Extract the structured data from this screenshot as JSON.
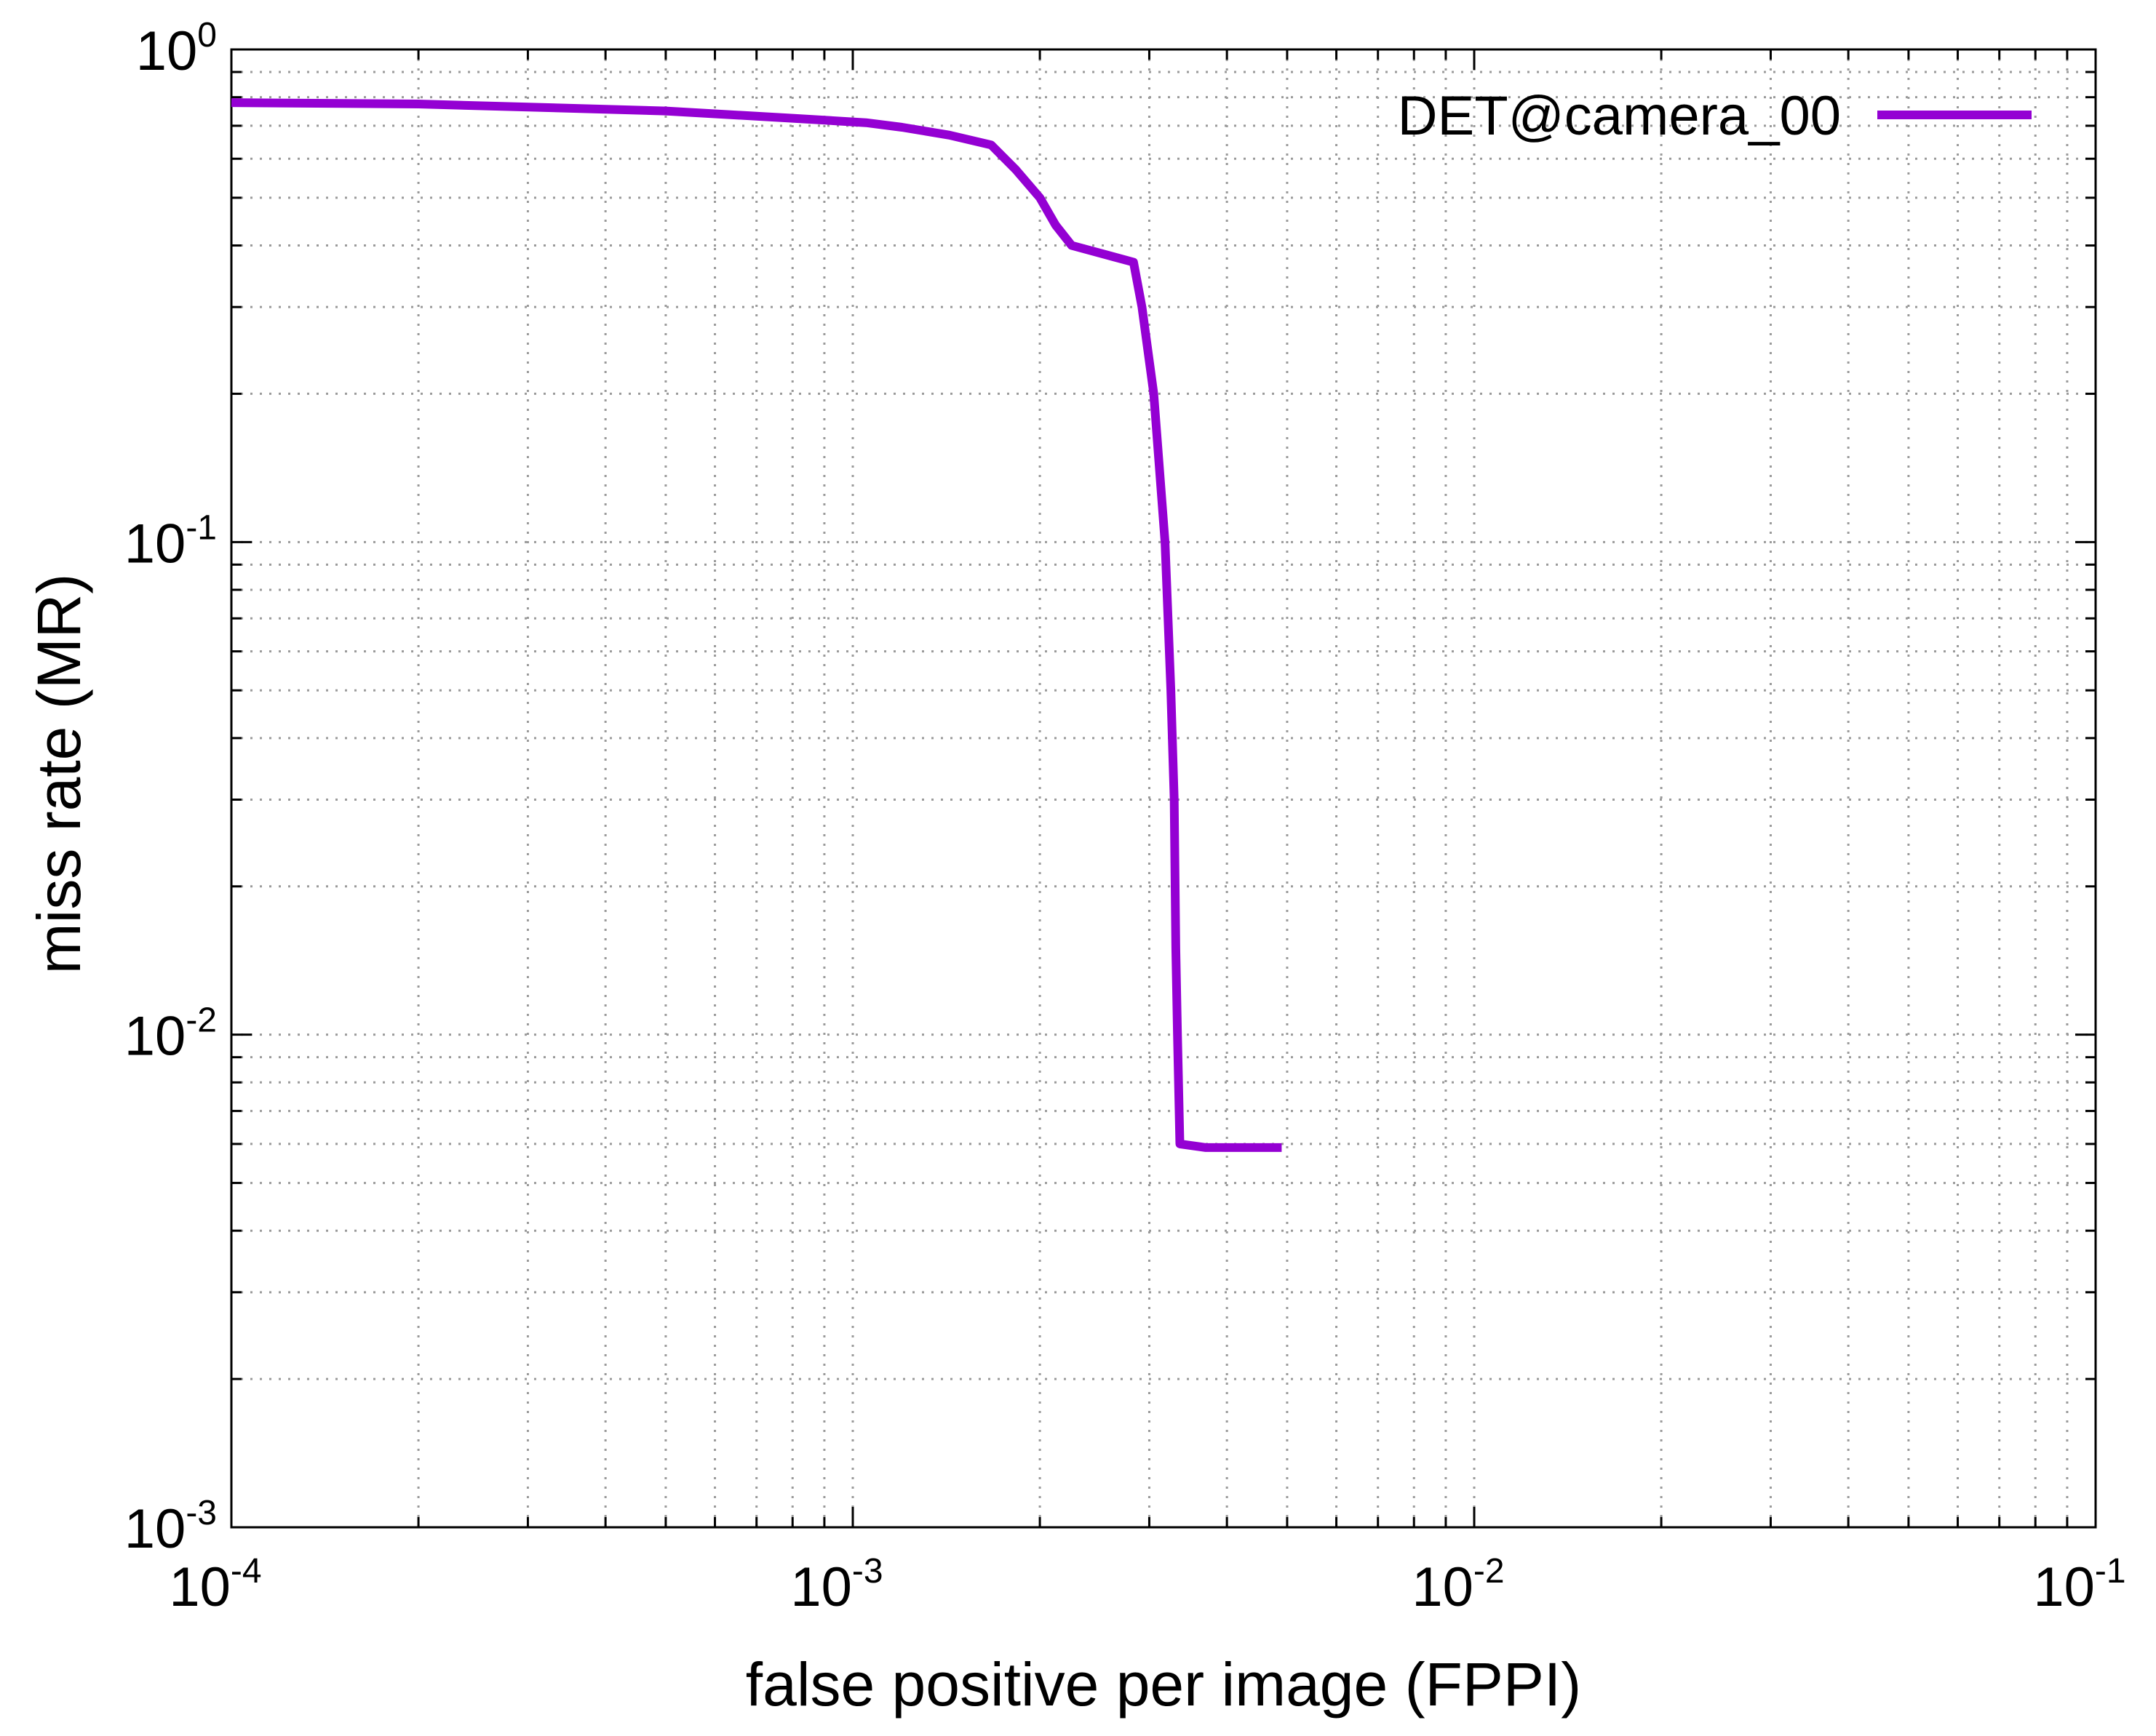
{
  "chart_data": {
    "type": "line",
    "title": "",
    "xlabel": "false positive per image (FPPI)",
    "ylabel": "miss rate (MR)",
    "xscale": "log",
    "yscale": "log",
    "xlim": [
      0.0001,
      0.1
    ],
    "ylim": [
      0.001,
      1
    ],
    "grid": true,
    "legend_position": "top-right",
    "x_ticks": [
      {
        "value": 0.0001,
        "base": "10",
        "exp": "-4"
      },
      {
        "value": 0.001,
        "base": "10",
        "exp": "-3"
      },
      {
        "value": 0.01,
        "base": "10",
        "exp": "-2"
      },
      {
        "value": 0.1,
        "base": "10",
        "exp": "-1"
      }
    ],
    "y_ticks": [
      {
        "value": 1,
        "base": "10",
        "exp": "0"
      },
      {
        "value": 0.1,
        "base": "10",
        "exp": "-1"
      },
      {
        "value": 0.01,
        "base": "10",
        "exp": "-2"
      },
      {
        "value": 0.001,
        "base": "10",
        "exp": "-3"
      }
    ],
    "series": [
      {
        "name": "DET@camera_00",
        "color": "#9400d3",
        "x": [
          0.0001,
          0.0002,
          0.0005,
          0.0008,
          0.00105,
          0.0012,
          0.00143,
          0.00167,
          0.00183,
          0.002,
          0.00212,
          0.00225,
          0.00283,
          0.00292,
          0.00305,
          0.00318,
          0.00325,
          0.00329,
          0.00331,
          0.00333,
          0.00336,
          0.0037,
          0.0041,
          0.0049
        ],
        "y": [
          0.78,
          0.775,
          0.75,
          0.725,
          0.71,
          0.695,
          0.67,
          0.64,
          0.57,
          0.5,
          0.44,
          0.4,
          0.37,
          0.3,
          0.2,
          0.1,
          0.05,
          0.03,
          0.015,
          0.01,
          0.006,
          0.0059,
          0.0059,
          0.0059
        ]
      }
    ]
  }
}
